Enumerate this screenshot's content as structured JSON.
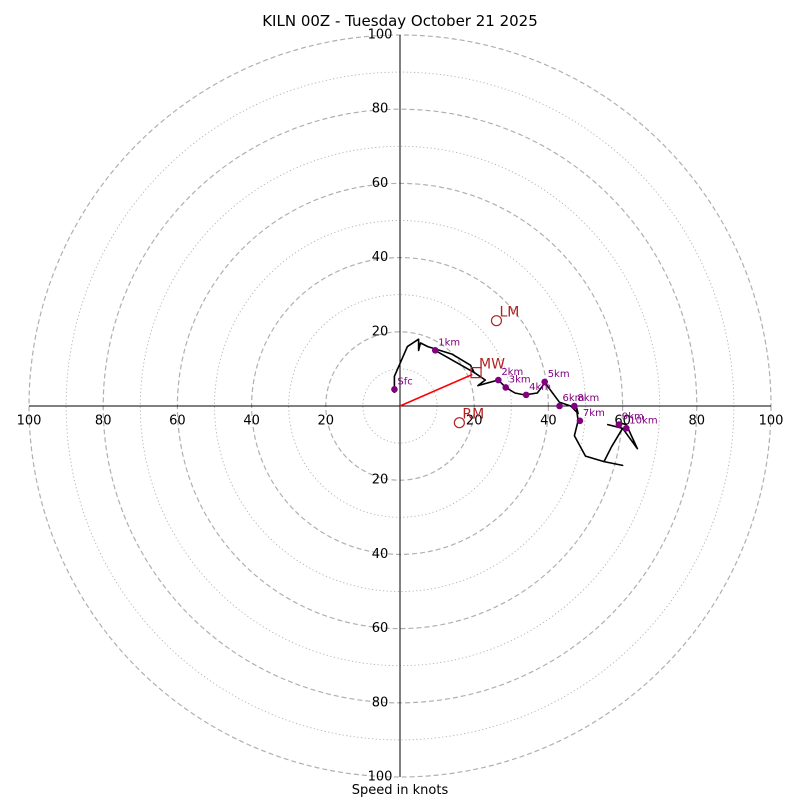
{
  "chart_data": {
    "type": "hodograph",
    "title": "KILN 00Z - Tuesday October 21 2025",
    "xlabel": "Speed in knots",
    "units": "knots",
    "axis_max": 100,
    "ring_major": [
      20,
      40,
      60,
      80,
      100
    ],
    "ring_minor": [
      10,
      30,
      50,
      70,
      90
    ],
    "axis_tick_labels": {
      "top": [
        "20",
        "40",
        "60",
        "80",
        "100"
      ],
      "bottom": [
        "20",
        "40",
        "60",
        "80",
        "100"
      ],
      "left": [
        "20",
        "40",
        "60",
        "80",
        "100"
      ],
      "right": [
        "20",
        "40",
        "60",
        "80",
        "100"
      ]
    },
    "grid": true,
    "trace": [
      {
        "u": -1.5,
        "v": 3.5
      },
      {
        "u": -1.5,
        "v": 8
      },
      {
        "u": 2,
        "v": 16
      },
      {
        "u": 5,
        "v": 18
      },
      {
        "u": 5,
        "v": 15
      },
      {
        "u": 5.5,
        "v": 17
      },
      {
        "u": 7.5,
        "v": 16
      },
      {
        "u": 14,
        "v": 14
      },
      {
        "u": 19,
        "v": 11
      },
      {
        "u": 20,
        "v": 9
      },
      {
        "u": 9.5,
        "v": 15
      },
      {
        "u": 20,
        "v": 9
      },
      {
        "u": 23,
        "v": 7
      },
      {
        "u": 21,
        "v": 5.5
      },
      {
        "u": 26.5,
        "v": 7
      },
      {
        "u": 28.5,
        "v": 5
      },
      {
        "u": 31,
        "v": 3.5
      },
      {
        "u": 33.5,
        "v": 3
      },
      {
        "u": 37,
        "v": 3.5
      },
      {
        "u": 38.5,
        "v": 5.5
      },
      {
        "u": 39,
        "v": 6.5
      },
      {
        "u": 40,
        "v": 5
      },
      {
        "u": 43,
        "v": 1
      },
      {
        "u": 46,
        "v": 0
      },
      {
        "u": 48,
        "v": -2
      },
      {
        "u": 47.5,
        "v": 0
      },
      {
        "u": 48,
        "v": -4
      },
      {
        "u": 47,
        "v": -8
      },
      {
        "u": 50,
        "v": -13.5
      },
      {
        "u": 55,
        "v": -15
      },
      {
        "u": 60,
        "v": -16
      },
      {
        "u": 55,
        "v": -15
      },
      {
        "u": 57,
        "v": -11
      },
      {
        "u": 60,
        "v": -6
      },
      {
        "u": 56,
        "v": -5
      },
      {
        "u": 60,
        "v": -6
      },
      {
        "u": 64,
        "v": -11.5
      },
      {
        "u": 61,
        "v": -5
      },
      {
        "u": 59,
        "v": -4.5
      }
    ],
    "height_markers": [
      {
        "label": "Sfc",
        "u": -1.5,
        "v": 4.5
      },
      {
        "label": "1km",
        "u": 9.5,
        "v": 15
      },
      {
        "label": "2km",
        "u": 26.5,
        "v": 7
      },
      {
        "label": "3km",
        "u": 28.5,
        "v": 5
      },
      {
        "label": "4km",
        "u": 34,
        "v": 3
      },
      {
        "label": "5km",
        "u": 39,
        "v": 6.5
      },
      {
        "label": "6km",
        "u": 43,
        "v": 0
      },
      {
        "label": "7km",
        "u": 48.5,
        "v": -4
      },
      {
        "label": "8km",
        "u": 47,
        "v": 0
      },
      {
        "label": "9km",
        "u": 59,
        "v": -5
      },
      {
        "label": "10km",
        "u": 61,
        "v": -6
      }
    ],
    "storm_motion": [
      {
        "label": "LM",
        "u": 26,
        "v": 23,
        "symbol": "circle"
      },
      {
        "label": "MW",
        "u": 20.5,
        "v": 9,
        "symbol": "square"
      },
      {
        "label": "RM",
        "u": 16,
        "v": -4.5,
        "symbol": "circle"
      }
    ],
    "vector": {
      "from": {
        "u": 0,
        "v": 0
      },
      "to": {
        "u": 19.5,
        "v": 8.5
      }
    },
    "colors": {
      "trace": "#000000",
      "markers": "#800080",
      "storm_motion": "#b22222",
      "vector": "#ff0000",
      "grid": "#b0b0b0"
    }
  }
}
